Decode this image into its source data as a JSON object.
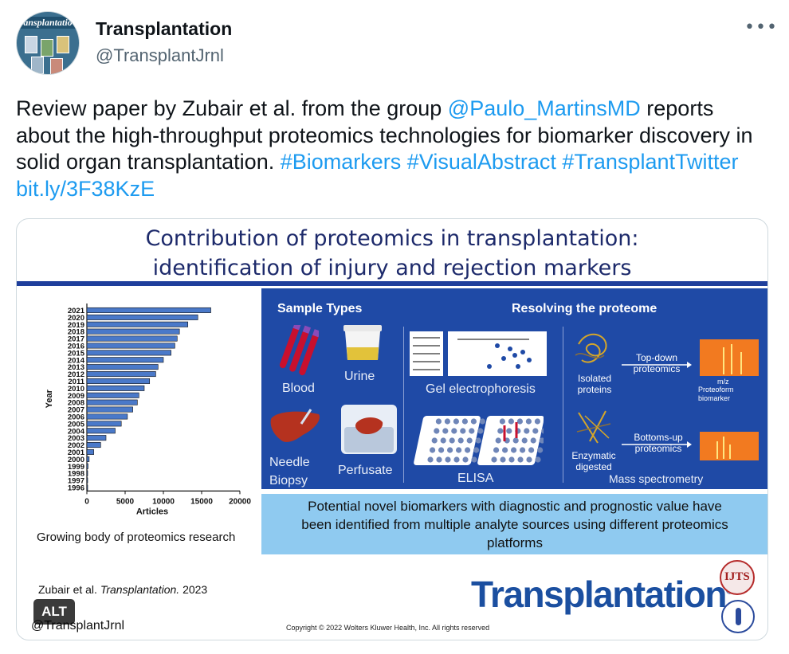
{
  "tweet": {
    "author_name": "Transplantation",
    "author_handle": "@TransplantJrnl",
    "avatar_text": "ansplantatio",
    "more_label": "•••",
    "text": {
      "part1": "Review paper by Zubair et al. from the group ",
      "mention": "@Paulo_MartinsMD",
      "part2": " reports about the high-throughput proteomics technologies for biomarker discovery in solid organ transplantation. ",
      "hashtag1": "#Biomarkers",
      "hashtag2": "#VisualAbstract",
      "hashtag3": "#TransplantTwitter",
      "link": "bit.ly/3F38KzE"
    }
  },
  "visual_abstract": {
    "title_line1": "Contribution of proteomics in transplantation:",
    "title_line2": "identification of injury and rejection markers",
    "chart_caption": "Growing body of proteomics research",
    "sample_types_header": "Sample Types",
    "resolving_header": "Resolving the proteome",
    "blood": "Blood",
    "urine": "Urine",
    "needle_biopsy_1": "Needle",
    "needle_biopsy_2": "Biopsy",
    "perfusate": "Perfusate",
    "gel_electrophoresis": "Gel electrophoresis",
    "elisa": "ELISA",
    "isolated_proteins_1": "Isolated",
    "isolated_proteins_2": "proteins",
    "enzymatic_digested_1": "Enzymatic",
    "enzymatic_digested_2": "digested",
    "top_down_1": "Top-down",
    "top_down_2": "proteomics",
    "bottoms_up_1": "Bottoms-up",
    "bottoms_up_2": "proteomics",
    "mz": "m/z",
    "proteoform_1": "Proteoform",
    "proteoform_2": "biomarker",
    "mass_spectrometry": "Mass spectrometry",
    "summary_line1": "Potential novel biomarkers with diagnostic and prognostic value have",
    "summary_line2": "been identified from multiple analyte sources using different proteomics",
    "summary_line3": "platforms",
    "citation_authors": "Zubair et al. ",
    "citation_journal": "Transplantation.",
    "citation_year": " 2023",
    "handle": "@TransplantJrnl",
    "brand": "Transplantation",
    "brand_mark": "®",
    "copyright": "Copyright © 2022  Wolters Kluwer Health, Inc. All rights reserved",
    "seal_text": "IJTS"
  },
  "alt_badge": "ALT",
  "colors": {
    "link": "#1d9bf0",
    "panel_blue": "#1f4aa6",
    "summary_blue": "#8fcaf0",
    "title_navy": "#1d2a6b",
    "bar_blue": "#4a79c9"
  },
  "chart_data": {
    "type": "bar",
    "orientation": "horizontal",
    "xlabel": "Articles",
    "ylabel": "Year",
    "xlim": [
      0,
      20000
    ],
    "xticks": [
      0,
      5000,
      10000,
      15000,
      20000
    ],
    "categories": [
      "2021",
      "2020",
      "2019",
      "2018",
      "2017",
      "2016",
      "2015",
      "2014",
      "2013",
      "2012",
      "2011",
      "2010",
      "2009",
      "2008",
      "2007",
      "2006",
      "2005",
      "2004",
      "2003",
      "2002",
      "2001",
      "2000",
      "1999",
      "1998",
      "1997",
      "1996"
    ],
    "values": [
      16200,
      14500,
      13200,
      12100,
      11800,
      11500,
      11000,
      10000,
      9300,
      9000,
      8200,
      7500,
      6800,
      6600,
      6000,
      5300,
      4500,
      3700,
      2500,
      1800,
      900,
      300,
      150,
      80,
      50,
      30
    ]
  }
}
